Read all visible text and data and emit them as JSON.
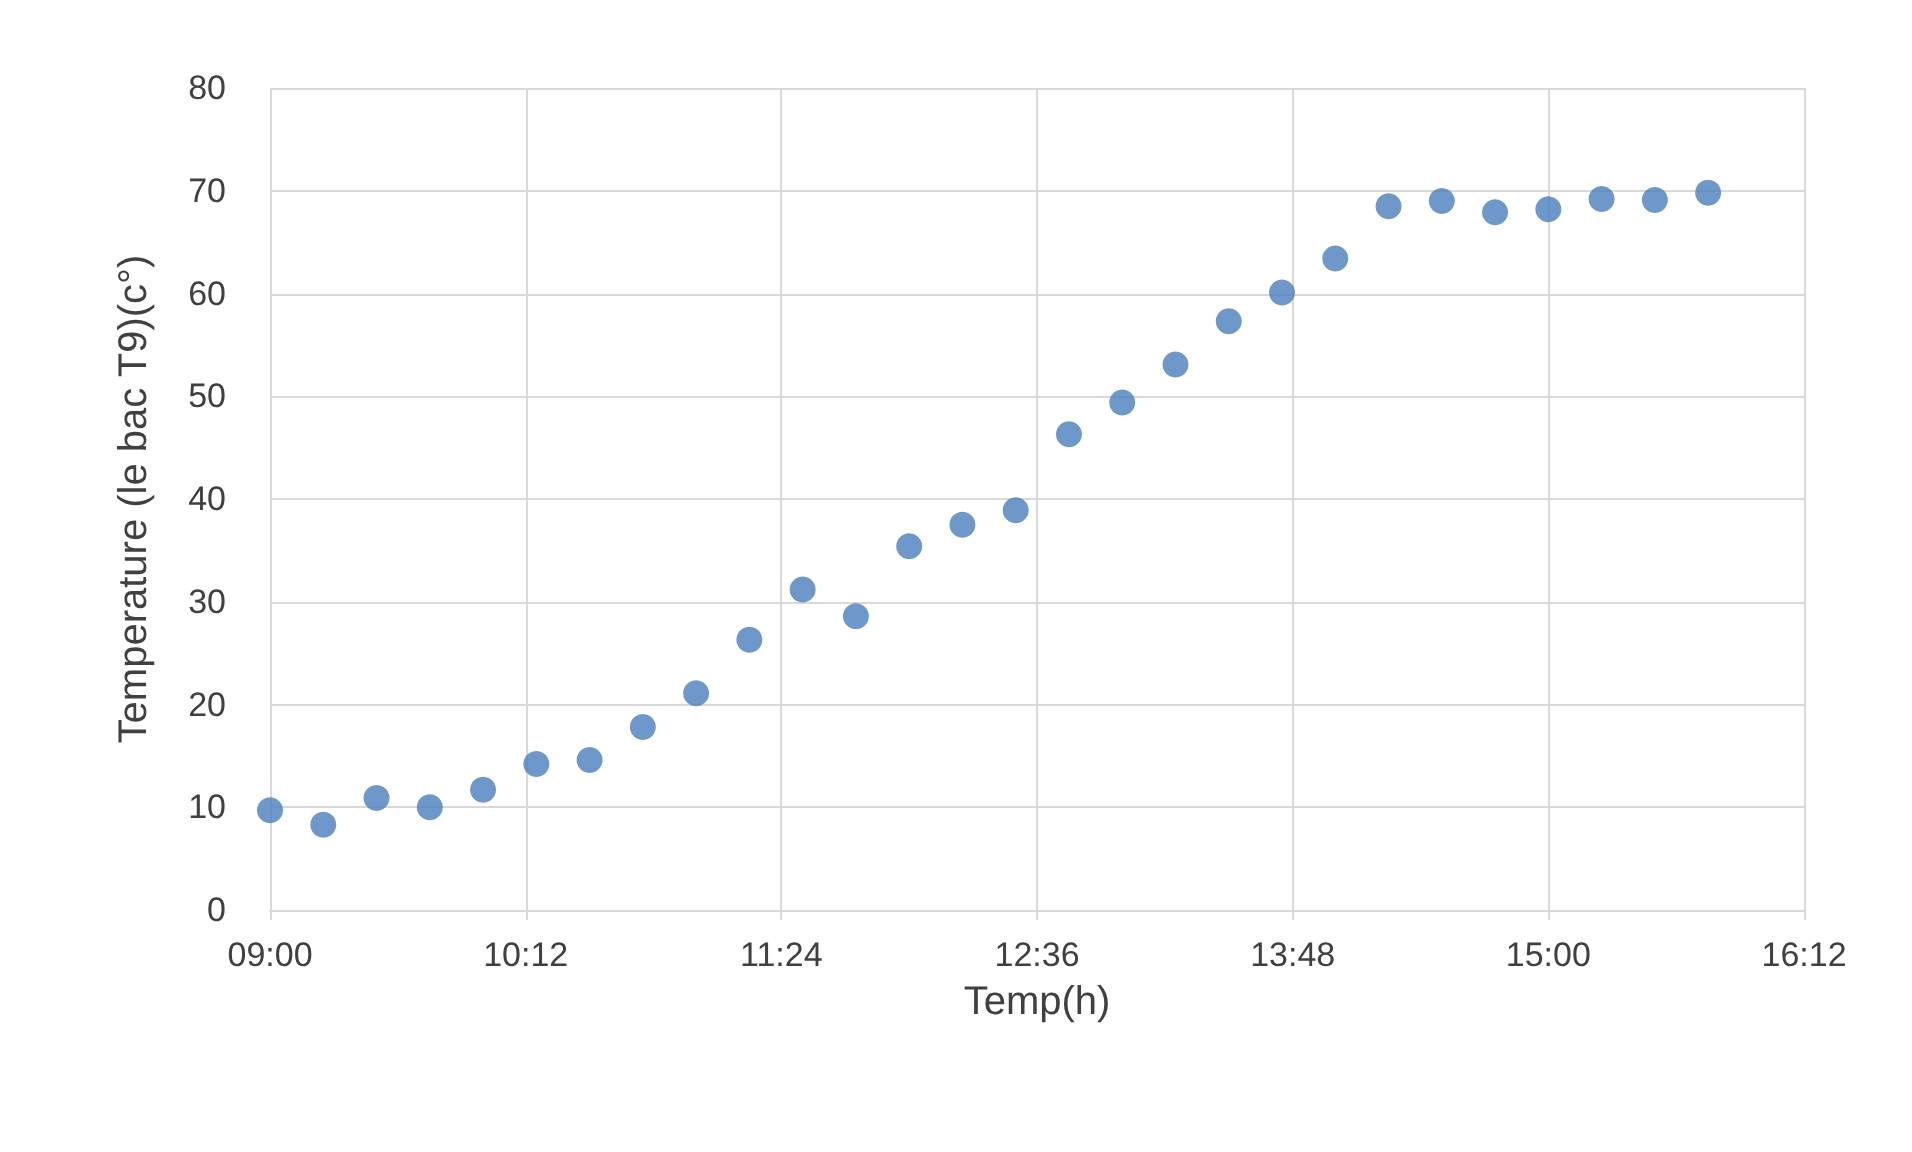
{
  "chart_data": {
    "type": "scatter",
    "xlabel": "Temp(h)",
    "ylabel": "Temperature (le bac T9)(c°)",
    "x": [
      9,
      9.25,
      9.5,
      9.75,
      10,
      10.25,
      10.5,
      10.75,
      11,
      11.25,
      11.5,
      11.75,
      12,
      12.25,
      12.5,
      12.75,
      13,
      13.25,
      13.5,
      13.75,
      14,
      14.25,
      14.5,
      14.75,
      15,
      15.25,
      15.5,
      15.75
    ],
    "series": [
      {
        "color": "#4a7ebb",
        "values": [
          9.7,
          8.3,
          10.9,
          10.0,
          11.7,
          14.2,
          14.6,
          17.8,
          21.1,
          26.3,
          31.2,
          28.6,
          35.4,
          37.5,
          38.9,
          46.3,
          49.4,
          53.1,
          57.3,
          60.1,
          63.4,
          68.5,
          69.0,
          67.9,
          68.2,
          69.2,
          69.1,
          69.8
        ]
      }
    ],
    "xlim": [
      9,
      16.2
    ],
    "xticks": [
      {
        "value": 9,
        "label": "09:00"
      },
      {
        "value": 10.2,
        "label": "10:12"
      },
      {
        "value": 11.4,
        "label": "11:24"
      },
      {
        "value": 12.6,
        "label": "12:36"
      },
      {
        "value": 13.8,
        "label": "13:48"
      },
      {
        "value": 15,
        "label": "15:00"
      },
      {
        "value": 16.2,
        "label": "16:12"
      }
    ],
    "ylim": [
      0,
      80
    ],
    "yticks": [
      0,
      10,
      20,
      30,
      40,
      50,
      60,
      70,
      80
    ],
    "grid": true,
    "marker": "circle"
  }
}
